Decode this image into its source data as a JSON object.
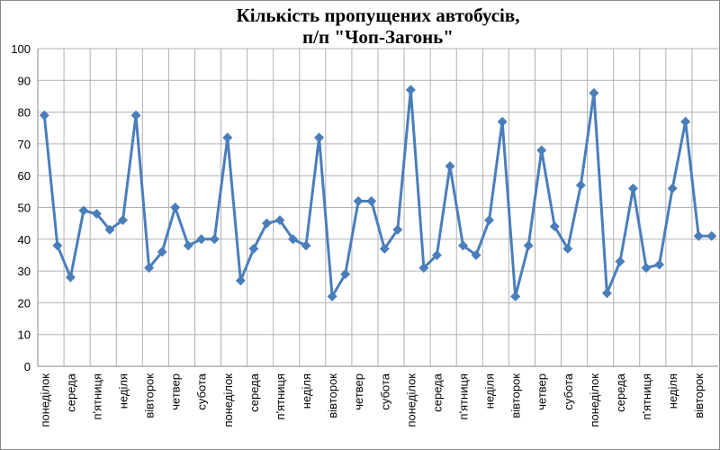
{
  "chart_data": {
    "type": "line",
    "title": [
      "Кількість пропущених автобусів,",
      "п/п \"Чоп-Загонь\""
    ],
    "categories": [
      "понеділок",
      null,
      "середа",
      null,
      "п'ятниця",
      null,
      "неділя",
      null,
      "вівторок",
      null,
      "четвер",
      null,
      "субота",
      null,
      "понеділок",
      null,
      "середа",
      null,
      "п'ятниця",
      null,
      "неділя",
      null,
      "вівторок",
      null,
      "четвер",
      null,
      "субота",
      null,
      "понеділок",
      null,
      "середа",
      null,
      "п'ятниця",
      null,
      "неділя",
      null,
      "вівторок",
      null,
      "четвер",
      null,
      "субота",
      null,
      "понеділок",
      null,
      "середа",
      null,
      "п'ятниця",
      null,
      "неділя",
      null,
      "вівторок",
      null
    ],
    "series": [
      {
        "color": "#4a7ebb",
        "values": [
          79,
          38,
          28,
          49,
          48,
          43,
          46,
          79,
          31,
          36,
          50,
          38,
          40,
          40,
          72,
          27,
          37,
          45,
          46,
          40,
          38,
          72,
          22,
          29,
          52,
          52,
          37,
          43,
          87,
          31,
          35,
          63,
          38,
          35,
          46,
          77,
          22,
          38,
          68,
          44,
          37,
          57,
          86,
          23,
          33,
          56,
          31,
          32,
          56,
          77,
          41,
          41
        ]
      }
    ],
    "ylim": [
      0,
      100
    ],
    "yticks": [
      0,
      10,
      20,
      30,
      40,
      50,
      60,
      70,
      80,
      90,
      100
    ],
    "grid": true
  }
}
